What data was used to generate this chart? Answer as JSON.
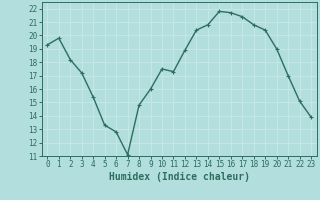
{
  "x": [
    0,
    1,
    2,
    3,
    4,
    5,
    6,
    7,
    8,
    9,
    10,
    11,
    12,
    13,
    14,
    15,
    16,
    17,
    18,
    19,
    20,
    21,
    22,
    23
  ],
  "y": [
    19.3,
    19.8,
    18.2,
    17.2,
    15.4,
    13.3,
    12.8,
    11.1,
    14.8,
    16.0,
    17.5,
    17.3,
    18.9,
    20.4,
    20.8,
    21.8,
    21.7,
    21.4,
    20.8,
    20.4,
    19.0,
    17.0,
    15.1,
    13.9
  ],
  "line_color": "#2d6e5e",
  "marker": "+",
  "marker_size": 3,
  "bg_color": "#b2dede",
  "grid_color": "#c8e8e8",
  "xlabel": "Humidex (Indice chaleur)",
  "xlim": [
    -0.5,
    23.5
  ],
  "ylim": [
    11,
    22.5
  ],
  "yticks": [
    11,
    12,
    13,
    14,
    15,
    16,
    17,
    18,
    19,
    20,
    21,
    22
  ],
  "xticks": [
    0,
    1,
    2,
    3,
    4,
    5,
    6,
    7,
    8,
    9,
    10,
    11,
    12,
    13,
    14,
    15,
    16,
    17,
    18,
    19,
    20,
    21,
    22,
    23
  ],
  "tick_fontsize": 5.5,
  "label_fontsize": 7,
  "line_width": 1.0
}
